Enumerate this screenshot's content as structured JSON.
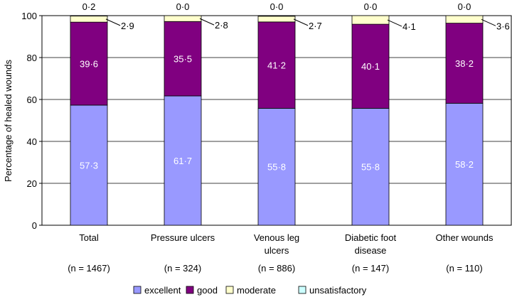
{
  "chart_data": {
    "type": "bar",
    "stacked": true,
    "ylabel": "Percentage of healed wounds",
    "ylim": [
      0,
      100
    ],
    "yticks": [
      0,
      20,
      40,
      60,
      80,
      100
    ],
    "grid": true,
    "legend_position": "bottom",
    "categories": [
      {
        "lines": [
          "Total"
        ],
        "n": "(n = 1467)"
      },
      {
        "lines": [
          "Pressure ulcers"
        ],
        "n": "(n = 324)"
      },
      {
        "lines": [
          "Venous leg",
          "ulcers"
        ],
        "n": "(n = 886)"
      },
      {
        "lines": [
          "Diabetic foot",
          "disease"
        ],
        "n": "(n = 147)"
      },
      {
        "lines": [
          "Other wounds"
        ],
        "n": "(n = 110)"
      }
    ],
    "series": [
      {
        "name": "excellent",
        "color": "#9999ff",
        "values": [
          57.3,
          61.7,
          55.8,
          55.8,
          58.2
        ]
      },
      {
        "name": "good",
        "color": "#800080",
        "values": [
          39.6,
          35.5,
          41.2,
          40.1,
          38.2
        ]
      },
      {
        "name": "moderate",
        "color": "#ffffcc",
        "values": [
          2.9,
          2.8,
          2.7,
          4.1,
          3.6
        ]
      },
      {
        "name": "unsatisfactory",
        "color": "#ccffff",
        "values": [
          0.2,
          0.0,
          0.0,
          0.0,
          0.0
        ]
      }
    ]
  }
}
